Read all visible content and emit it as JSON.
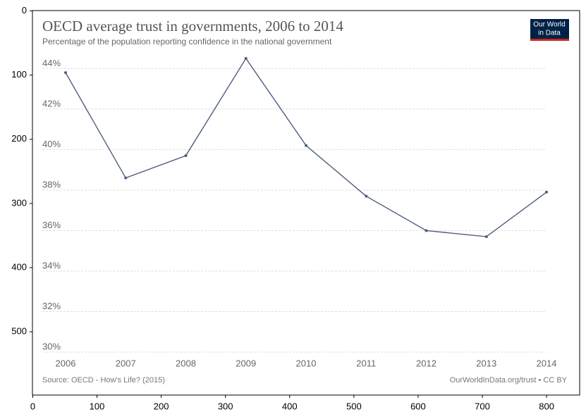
{
  "chart_data": [
    {
      "type": "image",
      "xlim": [
        -0.5,
        851.5
      ],
      "ylim": [
        598.5,
        -0.5
      ],
      "xticks": [
        0,
        100,
        200,
        300,
        400,
        500,
        600,
        700,
        800
      ],
      "yticks": [
        0,
        100,
        200,
        300,
        400,
        500
      ]
    },
    {
      "type": "line",
      "title": "OECD average trust in governments, 2006 to 2014",
      "subtitle": "Percentage of the population reporting confidence in the national government",
      "source": "Source: OECD - How's Life? (2015)",
      "credit": "OurWorldInData.org/trust • CC BY",
      "logo": [
        "Our World",
        "in Data"
      ],
      "x": [
        2006,
        2007,
        2008,
        2009,
        2010,
        2011,
        2012,
        2013,
        2014
      ],
      "values": [
        43.8,
        38.6,
        39.7,
        44.5,
        40.2,
        37.7,
        36.0,
        35.7,
        37.9
      ],
      "color": "#4e5d7c",
      "xlim": [
        2006,
        2014
      ],
      "xticks": [
        2006,
        2007,
        2008,
        2009,
        2010,
        2011,
        2012,
        2013,
        2014
      ],
      "ylim": [
        30,
        44.5
      ],
      "yticks": [
        {
          "value": 30,
          "label": "30%"
        },
        {
          "value": 32,
          "label": "32%"
        },
        {
          "value": 34,
          "label": "34%"
        },
        {
          "value": 36,
          "label": "36%"
        },
        {
          "value": 38,
          "label": "38%"
        },
        {
          "value": 40,
          "label": "40%"
        },
        {
          "value": 42,
          "label": "42%"
        },
        {
          "value": 44,
          "label": "44%"
        }
      ],
      "grid": true
    }
  ]
}
